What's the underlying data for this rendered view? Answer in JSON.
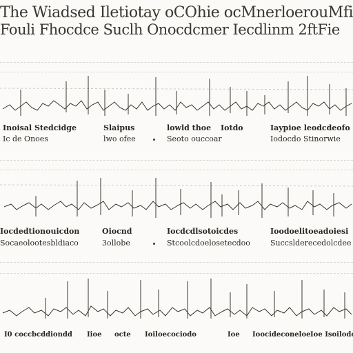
{
  "header": {
    "line1": "The Wiadsed Iletiotay oCOhie ocMnerloerouMfi",
    "line2": "Fouli Fhocdce Suclh Onocdcmer Iecdlinm 2ftFie"
  },
  "sections": [
    {
      "captions": [
        {
          "text": "Inoisal Stedcidge",
          "bold": true
        },
        {
          "text": "Slaipus",
          "bold": true
        },
        {
          "text": "lowld thoe",
          "bold": true
        },
        {
          "text": "Iotdo",
          "bold": true
        },
        {
          "text": "Iaypioe leodcdeofo",
          "bold": true
        },
        {
          "text": "Ic de Onoes",
          "bold": false
        },
        {
          "text": "lwo ofee",
          "bold": false
        },
        {
          "text": "Seoto ouccoar",
          "bold": false
        },
        {
          "text": "Iodocdo Stinorwie",
          "bold": false
        }
      ]
    },
    {
      "captions": [
        {
          "text": "Iocdedtionouicdon",
          "bold": true
        },
        {
          "text": "Oiocnd",
          "bold": true
        },
        {
          "text": "Iocdcdlsotoicdes",
          "bold": true
        },
        {
          "text": "Ioodoelitoeadoiesi",
          "bold": true
        },
        {
          "text": "Socaeolootesbldiaco",
          "bold": false
        },
        {
          "text": "3ollobe",
          "bold": false
        },
        {
          "text": "Stcoolcdoelosetecdoo",
          "bold": false
        },
        {
          "text": "Succslderecedolcdee",
          "bold": false
        }
      ]
    },
    {
      "captions": [
        {
          "text": "I0 coccbcddiondd",
          "bold": true
        },
        {
          "text": "Iioe",
          "bold": true
        },
        {
          "text": "octe",
          "bold": true
        },
        {
          "text": "Ioiloecociodo",
          "bold": true
        },
        {
          "text": "Ioe",
          "bold": true
        },
        {
          "text": "Ioocideconeloe",
          "bold": true
        },
        {
          "text": "Ioe Isoilodo",
          "bold": true
        }
      ]
    }
  ],
  "colors": {
    "ink": "#3a352e",
    "sepia": "#8a7a5c",
    "rule": "#d9d5ce"
  }
}
